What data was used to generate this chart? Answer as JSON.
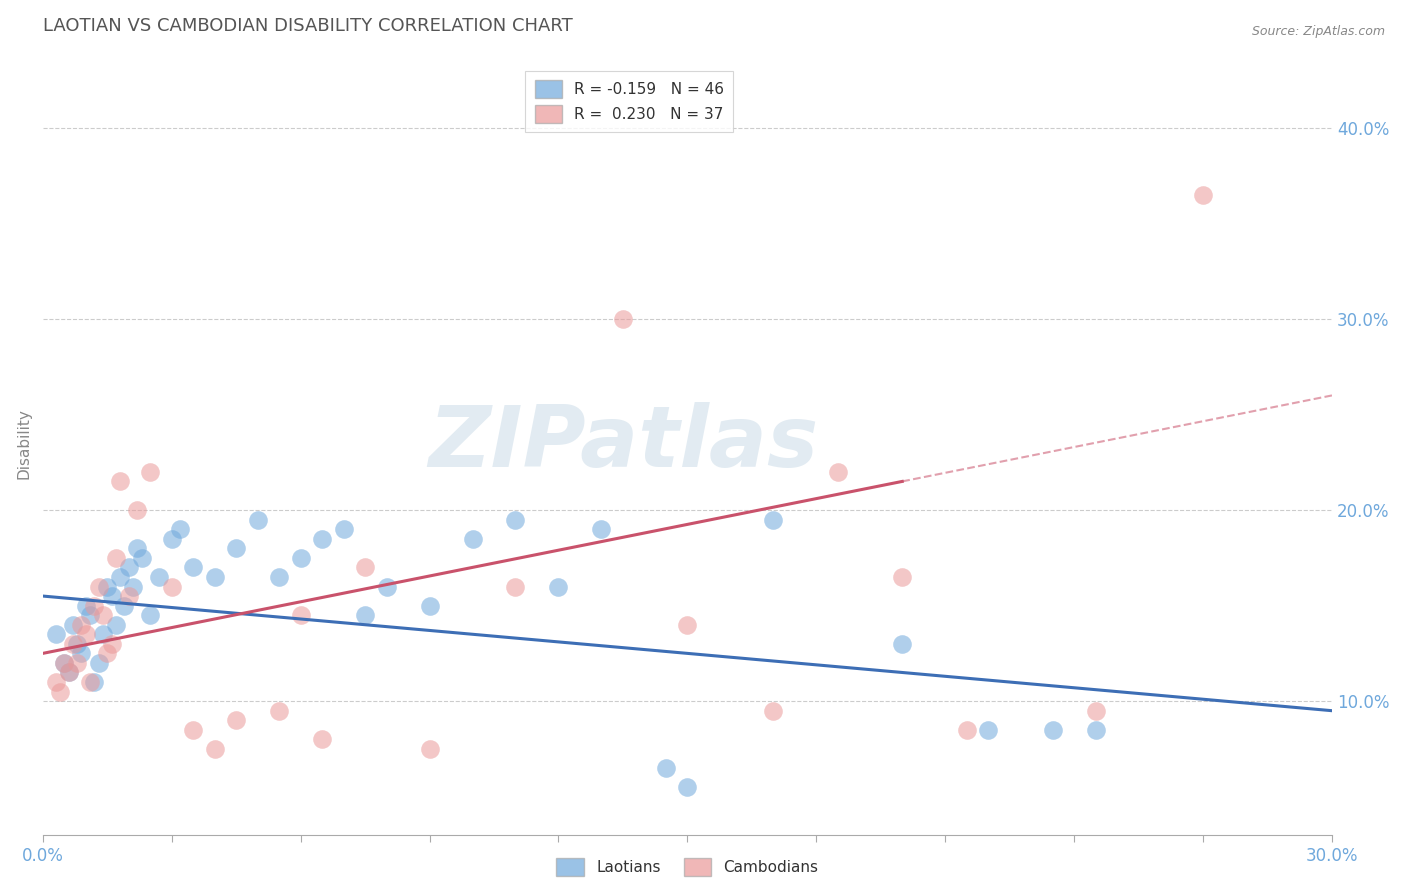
{
  "title": "LAOTIAN VS CAMBODIAN DISABILITY CORRELATION CHART",
  "source": "Source: ZipAtlas.com",
  "ylabel": "Disability",
  "xlim": [
    0.0,
    30.0
  ],
  "ylim": [
    3.0,
    44.0
  ],
  "yticks": [
    10.0,
    20.0,
    30.0,
    40.0
  ],
  "xticks": [
    0.0,
    3.0,
    6.0,
    9.0,
    12.0,
    15.0,
    18.0,
    21.0,
    24.0,
    27.0,
    30.0
  ],
  "legend_blue_label": "R = -0.159   N = 46",
  "legend_pink_label": "R =  0.230   N = 37",
  "legend_laotians": "Laotians",
  "legend_cambodians": "Cambodians",
  "blue_color": "#6fa8dc",
  "pink_color": "#ea9999",
  "blue_line_color": "#3d6eb5",
  "pink_line_color": "#c9526b",
  "title_color": "#555555",
  "axis_label_color": "#6fa8dc",
  "background_color": "#ffffff",
  "watermark_text": "ZIPatlas",
  "blue_scatter_x": [
    0.3,
    0.5,
    0.6,
    0.7,
    0.8,
    0.9,
    1.0,
    1.1,
    1.2,
    1.3,
    1.4,
    1.5,
    1.6,
    1.7,
    1.8,
    1.9,
    2.0,
    2.1,
    2.2,
    2.3,
    2.5,
    2.7,
    3.0,
    3.2,
    3.5,
    4.0,
    4.5,
    5.0,
    5.5,
    6.0,
    6.5,
    7.0,
    7.5,
    8.0,
    9.0,
    10.0,
    11.0,
    12.0,
    13.0,
    14.5,
    15.0,
    17.0,
    20.0,
    22.0,
    23.5,
    24.5
  ],
  "blue_scatter_y": [
    13.5,
    12.0,
    11.5,
    14.0,
    13.0,
    12.5,
    15.0,
    14.5,
    11.0,
    12.0,
    13.5,
    16.0,
    15.5,
    14.0,
    16.5,
    15.0,
    17.0,
    16.0,
    18.0,
    17.5,
    14.5,
    16.5,
    18.5,
    19.0,
    17.0,
    16.5,
    18.0,
    19.5,
    16.5,
    17.5,
    18.5,
    19.0,
    14.5,
    16.0,
    15.0,
    18.5,
    19.5,
    16.0,
    19.0,
    6.5,
    5.5,
    19.5,
    13.0,
    8.5,
    8.5,
    8.5
  ],
  "pink_scatter_x": [
    0.3,
    0.4,
    0.5,
    0.6,
    0.7,
    0.8,
    0.9,
    1.0,
    1.1,
    1.2,
    1.3,
    1.4,
    1.5,
    1.6,
    1.7,
    1.8,
    2.0,
    2.2,
    2.5,
    3.0,
    3.5,
    4.0,
    4.5,
    5.5,
    6.0,
    6.5,
    7.5,
    9.0,
    11.0,
    13.5,
    15.0,
    17.0,
    18.5,
    20.0,
    21.5,
    24.5,
    27.0
  ],
  "pink_scatter_y": [
    11.0,
    10.5,
    12.0,
    11.5,
    13.0,
    12.0,
    14.0,
    13.5,
    11.0,
    15.0,
    16.0,
    14.5,
    12.5,
    13.0,
    17.5,
    21.5,
    15.5,
    20.0,
    22.0,
    16.0,
    8.5,
    7.5,
    9.0,
    9.5,
    14.5,
    8.0,
    17.0,
    7.5,
    16.0,
    30.0,
    14.0,
    9.5,
    22.0,
    16.5,
    8.5,
    9.5,
    36.5
  ],
  "blue_line_x_start": 0.0,
  "blue_line_x_end": 30.0,
  "blue_line_y_start": 15.5,
  "blue_line_y_end": 9.5,
  "pink_line_x_start": 0.0,
  "pink_line_x_end": 20.0,
  "pink_line_y_start": 12.5,
  "pink_line_y_end": 21.5,
  "pink_dashed_x_start": 20.0,
  "pink_dashed_x_end": 30.0,
  "pink_dashed_y_start": 21.5,
  "pink_dashed_y_end": 26.0
}
